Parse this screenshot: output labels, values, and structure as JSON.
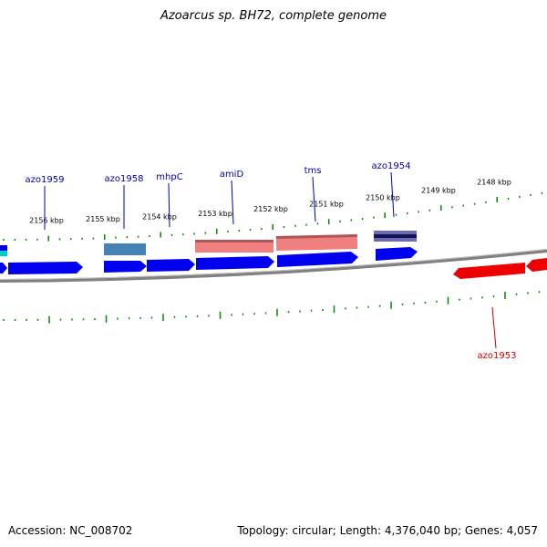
{
  "header": {
    "title": "Azoarcus sp. BH72, complete genome"
  },
  "footer": {
    "accession": "Accession: NC_008702",
    "summary": "Topology: circular; Length: 4,376,040 bp; Genes: 4,057"
  },
  "colors": {
    "forward_gene": "#0000ee",
    "reverse_gene": "#ee0000",
    "feature_pink": "#f08080",
    "feature_steel": "#4682b4",
    "feature_navy": "#2a2a7a",
    "feature_cyan": "#00cccc",
    "backbone": "#888888",
    "tick": "#008800",
    "label_blue": "#0000aa",
    "label_red": "#cc0000"
  },
  "scale_labels": [
    "2156 kbp",
    "2155 kbp",
    "2154 kbp",
    "2153 kbp",
    "2152 kbp",
    "2151 kbp",
    "2150 kbp",
    "2149 kbp",
    "2148 kbp"
  ],
  "gene_labels": [
    {
      "text": "azo1959",
      "strand": "forward"
    },
    {
      "text": "azo1958",
      "strand": "forward"
    },
    {
      "text": "mhpC",
      "strand": "forward"
    },
    {
      "text": "amiD",
      "strand": "forward"
    },
    {
      "text": "tms",
      "strand": "forward"
    },
    {
      "text": "azo1954",
      "strand": "forward"
    },
    {
      "text": "azo1953",
      "strand": "reverse"
    }
  ]
}
